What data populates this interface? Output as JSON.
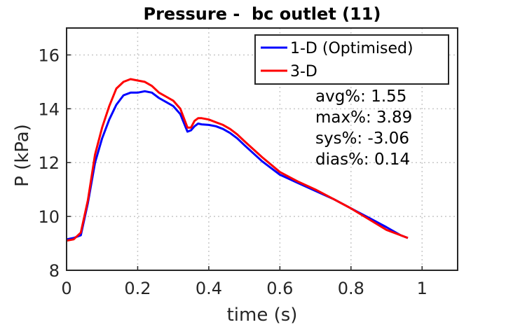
{
  "chart_data": {
    "type": "line",
    "title": "Pressure -  bc outlet (11)",
    "xlabel": "time (s)",
    "ylabel": "P (kPa)",
    "xlim": [
      0,
      1.1
    ],
    "ylim": [
      8,
      17
    ],
    "xticks": [
      0,
      0.2,
      0.4,
      0.6,
      0.8,
      1
    ],
    "xtick_labels": [
      "0",
      "0.2",
      "0.4",
      "0.6",
      "0.8",
      "1"
    ],
    "yticks": [
      8,
      10,
      12,
      14,
      16
    ],
    "ytick_labels": [
      "8",
      "10",
      "12",
      "14",
      "16"
    ],
    "grid": true,
    "legend_position": "top-right",
    "series": [
      {
        "name": "1-D (Optimised)",
        "color": "#0000ff",
        "x": [
          0.0,
          0.02,
          0.04,
          0.06,
          0.08,
          0.1,
          0.12,
          0.14,
          0.16,
          0.18,
          0.2,
          0.22,
          0.24,
          0.26,
          0.28,
          0.3,
          0.32,
          0.34,
          0.35,
          0.36,
          0.37,
          0.38,
          0.4,
          0.42,
          0.44,
          0.46,
          0.48,
          0.5,
          0.55,
          0.6,
          0.65,
          0.7,
          0.75,
          0.8,
          0.85,
          0.9,
          0.94,
          0.96
        ],
        "y": [
          9.15,
          9.2,
          9.3,
          10.5,
          12.0,
          12.9,
          13.6,
          14.15,
          14.5,
          14.6,
          14.6,
          14.65,
          14.6,
          14.4,
          14.25,
          14.1,
          13.8,
          13.15,
          13.2,
          13.35,
          13.45,
          13.42,
          13.4,
          13.35,
          13.25,
          13.1,
          12.9,
          12.65,
          12.05,
          11.55,
          11.25,
          10.95,
          10.65,
          10.3,
          9.95,
          9.6,
          9.3,
          9.2
        ]
      },
      {
        "name": "3-D",
        "color": "#ff0000",
        "x": [
          0.0,
          0.02,
          0.04,
          0.06,
          0.08,
          0.1,
          0.12,
          0.14,
          0.16,
          0.18,
          0.2,
          0.22,
          0.24,
          0.26,
          0.28,
          0.3,
          0.32,
          0.34,
          0.35,
          0.36,
          0.37,
          0.38,
          0.4,
          0.42,
          0.44,
          0.46,
          0.48,
          0.5,
          0.55,
          0.6,
          0.65,
          0.7,
          0.75,
          0.8,
          0.85,
          0.9,
          0.94,
          0.96
        ],
        "y": [
          9.1,
          9.15,
          9.4,
          10.6,
          12.3,
          13.3,
          14.1,
          14.75,
          15.0,
          15.1,
          15.05,
          15.0,
          14.85,
          14.6,
          14.45,
          14.3,
          14.0,
          13.3,
          13.3,
          13.55,
          13.65,
          13.65,
          13.6,
          13.5,
          13.4,
          13.25,
          13.05,
          12.8,
          12.2,
          11.65,
          11.3,
          11.0,
          10.65,
          10.3,
          9.9,
          9.5,
          9.3,
          9.2
        ]
      }
    ],
    "annotations": [
      "avg%: 1.55",
      "max%: 3.89",
      "sys%: -3.06",
      "dias%: 0.14"
    ]
  }
}
